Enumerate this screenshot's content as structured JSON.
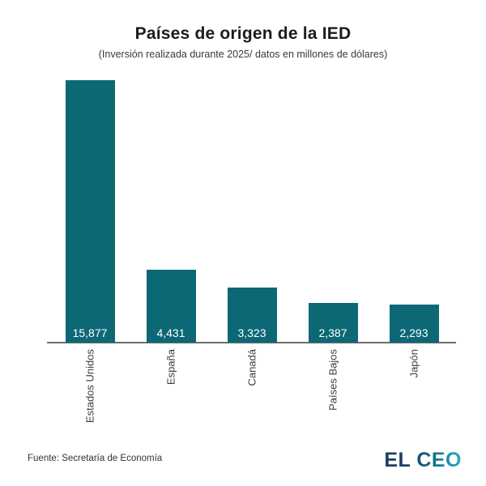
{
  "chart_data": {
    "type": "bar",
    "title": "Países de origen de la IED",
    "subtitle": "(Inversión realizada durante 2025/ datos en millones de dólares)",
    "categories": [
      "Estados Unidos",
      "España",
      "Canadá",
      "Países Bajos",
      "Japón"
    ],
    "values": [
      15877,
      4431,
      3323,
      2387,
      2293
    ],
    "value_labels": [
      "15,877",
      "4,431",
      "3,323",
      "2,387",
      "2,293"
    ],
    "xlabel": "",
    "ylabel": "",
    "ylim": [
      0,
      15877
    ],
    "grid": false,
    "legend": false,
    "x_tick_rotation": 90,
    "bar_color": "#0d6876",
    "value_label_color": "#ffffff",
    "axis_line_color": "#6e6e6e",
    "tick_label_color": "#3d3d3d"
  },
  "footer": {
    "source": "Fuente: Secretaría de Economía",
    "logo": "EL CEO",
    "logo_color_start": "#1e3d63",
    "logo_color_end": "#2bacc8"
  }
}
